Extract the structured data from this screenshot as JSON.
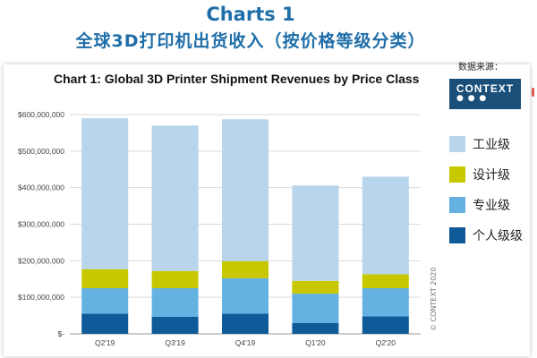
{
  "header": {
    "title_en": "Charts 1",
    "title_zh": "全球3D打印机出货收入（按价格等级分类）"
  },
  "source": {
    "label": "数据来源：",
    "logo_text": "CONTEXT",
    "logo_dots": "● ● ●"
  },
  "copyright": "© CONTEXT 2020",
  "colors": {
    "industrial": "#b8d5ec",
    "design": "#c8c800",
    "professional": "#65b2e2",
    "personal": "#0f5a98",
    "title": "#1f6ea8",
    "logo_bg": "#1a4f7a"
  },
  "chart_data": {
    "type": "bar",
    "stacked": true,
    "title": "Chart 1: Global 3D Printer Shipment Revenues by Price Class",
    "xlabel": "",
    "ylabel": "",
    "categories": [
      "Q2'19",
      "Q3'19",
      "Q4'19",
      "Q1'20",
      "Q2'20"
    ],
    "ylim": [
      0,
      600000000
    ],
    "yticks": [
      0,
      100000000,
      200000000,
      300000000,
      400000000,
      500000000,
      600000000
    ],
    "ytick_labels": [
      "$-",
      "$100,000,000",
      "$200,000,000",
      "$300,000,000",
      "$400,000,000",
      "$500,000,000",
      "$600,000,000"
    ],
    "grid": true,
    "legend_position": "right",
    "series": [
      {
        "name": "个人级级",
        "color": "#0f5a98",
        "values": [
          55000000,
          47000000,
          55000000,
          30000000,
          48000000
        ]
      },
      {
        "name": "专业级",
        "color": "#65b2e2",
        "values": [
          70000000,
          78000000,
          97000000,
          80000000,
          77000000
        ]
      },
      {
        "name": "设计级",
        "color": "#c8c800",
        "values": [
          52000000,
          47000000,
          47000000,
          35000000,
          38000000
        ]
      },
      {
        "name": "工业级",
        "color": "#b8d5ec",
        "values": [
          413000000,
          398000000,
          388000000,
          261000000,
          267000000
        ]
      }
    ],
    "legend_order": [
      "工业级",
      "设计级",
      "专业级",
      "个人级级"
    ]
  }
}
